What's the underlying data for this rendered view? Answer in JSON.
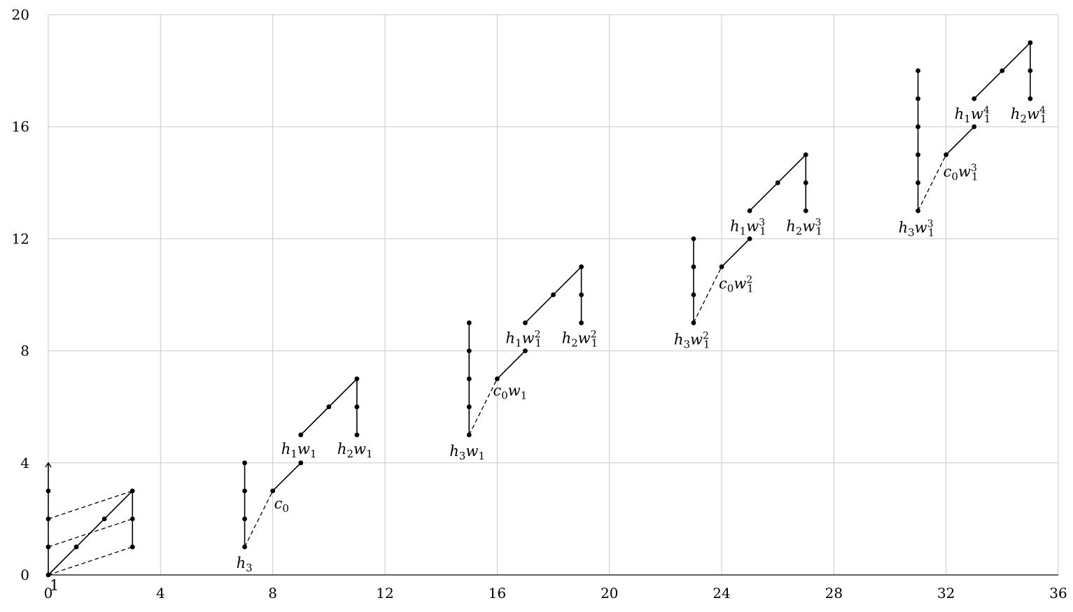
{
  "chart_data": {
    "type": "scatter",
    "title": "",
    "xlabel": "",
    "ylabel": "",
    "xlim": [
      0,
      36
    ],
    "ylim": [
      0,
      20
    ],
    "grid": true,
    "x_ticks": [
      0,
      4,
      8,
      12,
      16,
      20,
      24,
      28,
      32,
      36
    ],
    "y_ticks": [
      0,
      4,
      8,
      12,
      16,
      20
    ],
    "x_tick_labels": [
      "0",
      "4",
      "8",
      "12",
      "16",
      "20",
      "24",
      "28",
      "32",
      "36"
    ],
    "y_tick_labels": [
      "0",
      "4",
      "8",
      "12",
      "16",
      "20"
    ],
    "points": [
      [
        0,
        0
      ],
      [
        0,
        1
      ],
      [
        0,
        2
      ],
      [
        0,
        3
      ],
      [
        1,
        1
      ],
      [
        2,
        2
      ],
      [
        3,
        1
      ],
      [
        3,
        2
      ],
      [
        3,
        3
      ],
      [
        7,
        1
      ],
      [
        7,
        2
      ],
      [
        7,
        3
      ],
      [
        7,
        4
      ],
      [
        8,
        3
      ],
      [
        9,
        4
      ],
      [
        9,
        5
      ],
      [
        10,
        6
      ],
      [
        11,
        5
      ],
      [
        11,
        6
      ],
      [
        11,
        7
      ],
      [
        15,
        5
      ],
      [
        15,
        6
      ],
      [
        15,
        7
      ],
      [
        15,
        8
      ],
      [
        15,
        9
      ],
      [
        16,
        7
      ],
      [
        17,
        8
      ],
      [
        17,
        9
      ],
      [
        18,
        10
      ],
      [
        19,
        9
      ],
      [
        19,
        10
      ],
      [
        19,
        11
      ],
      [
        23,
        9
      ],
      [
        23,
        10
      ],
      [
        23,
        11
      ],
      [
        23,
        12
      ],
      [
        24,
        11
      ],
      [
        25,
        12
      ],
      [
        25,
        13
      ],
      [
        26,
        14
      ],
      [
        27,
        13
      ],
      [
        27,
        14
      ],
      [
        27,
        15
      ],
      [
        31,
        13
      ],
      [
        31,
        14
      ],
      [
        31,
        15
      ],
      [
        31,
        16
      ],
      [
        31,
        17
      ],
      [
        31,
        18
      ],
      [
        32,
        15
      ],
      [
        33,
        16
      ],
      [
        33,
        17
      ],
      [
        34,
        18
      ],
      [
        35,
        17
      ],
      [
        35,
        18
      ],
      [
        35,
        19
      ]
    ],
    "solid_lines": [
      [
        [
          0,
          0
        ],
        [
          0,
          4
        ]
      ],
      [
        [
          0,
          0
        ],
        [
          3,
          3
        ]
      ],
      [
        [
          3,
          1
        ],
        [
          3,
          3
        ]
      ],
      [
        [
          7,
          1
        ],
        [
          7,
          4
        ]
      ],
      [
        [
          8,
          3
        ],
        [
          9,
          4
        ]
      ],
      [
        [
          9,
          5
        ],
        [
          11,
          7
        ]
      ],
      [
        [
          11,
          5
        ],
        [
          11,
          7
        ]
      ],
      [
        [
          15,
          5
        ],
        [
          15,
          9
        ]
      ],
      [
        [
          16,
          7
        ],
        [
          17,
          8
        ]
      ],
      [
        [
          17,
          9
        ],
        [
          19,
          11
        ]
      ],
      [
        [
          19,
          9
        ],
        [
          19,
          11
        ]
      ],
      [
        [
          23,
          9
        ],
        [
          23,
          12
        ]
      ],
      [
        [
          24,
          11
        ],
        [
          25,
          12
        ]
      ],
      [
        [
          25,
          13
        ],
        [
          27,
          15
        ]
      ],
      [
        [
          27,
          13
        ],
        [
          27,
          15
        ]
      ],
      [
        [
          31,
          13
        ],
        [
          31,
          18
        ]
      ],
      [
        [
          32,
          15
        ],
        [
          33,
          16
        ]
      ],
      [
        [
          33,
          17
        ],
        [
          35,
          19
        ]
      ],
      [
        [
          35,
          17
        ],
        [
          35,
          19
        ]
      ]
    ],
    "dashed_lines": [
      [
        [
          0,
          0
        ],
        [
          3,
          1
        ]
      ],
      [
        [
          0,
          1
        ],
        [
          3,
          2
        ]
      ],
      [
        [
          0,
          2
        ],
        [
          3,
          3
        ]
      ],
      [
        [
          7,
          1
        ],
        [
          8,
          3
        ]
      ],
      [
        [
          15,
          5
        ],
        [
          16,
          7
        ]
      ],
      [
        [
          23,
          9
        ],
        [
          24,
          11
        ]
      ],
      [
        [
          31,
          13
        ],
        [
          32,
          15
        ]
      ]
    ],
    "arrows": [
      {
        "from": [
          0,
          3.6
        ],
        "to": [
          0,
          4
        ]
      }
    ],
    "annotations": [
      {
        "id": "one",
        "parts": [
          {
            "t": "1",
            "k": "plain"
          }
        ],
        "x": 0,
        "y": 0,
        "dx": 2,
        "dy": 22
      },
      {
        "id": "h3",
        "parts": [
          {
            "t": "h",
            "k": "i"
          },
          {
            "t": "3",
            "k": "sub"
          }
        ],
        "x": 7,
        "y": 1,
        "dx": -12,
        "dy": 30
      },
      {
        "id": "c0",
        "parts": [
          {
            "t": "c",
            "k": "i"
          },
          {
            "t": "0",
            "k": "sub"
          }
        ],
        "x": 8,
        "y": 3,
        "dx": 2,
        "dy": 25
      },
      {
        "id": "h1w1",
        "parts": [
          {
            "t": "h",
            "k": "i"
          },
          {
            "t": "1",
            "k": "sub"
          },
          {
            "t": "w",
            "k": "i"
          },
          {
            "t": "1",
            "k": "sub"
          }
        ],
        "x": 9,
        "y": 5,
        "dx": -28,
        "dy": 27
      },
      {
        "id": "h2w1",
        "parts": [
          {
            "t": "h",
            "k": "i"
          },
          {
            "t": "2",
            "k": "sub"
          },
          {
            "t": "w",
            "k": "i"
          },
          {
            "t": "1",
            "k": "sub"
          }
        ],
        "x": 11,
        "y": 5,
        "dx": -28,
        "dy": 27
      },
      {
        "id": "h3w1",
        "parts": [
          {
            "t": "h",
            "k": "i"
          },
          {
            "t": "3",
            "k": "sub"
          },
          {
            "t": "w",
            "k": "i"
          },
          {
            "t": "1",
            "k": "sub"
          }
        ],
        "x": 15,
        "y": 5,
        "dx": -28,
        "dy": 30
      },
      {
        "id": "c0w1",
        "parts": [
          {
            "t": "c",
            "k": "i"
          },
          {
            "t": "0",
            "k": "sub"
          },
          {
            "t": "w",
            "k": "i"
          },
          {
            "t": "1",
            "k": "sub"
          }
        ],
        "x": 16,
        "y": 7,
        "dx": -6,
        "dy": 24
      },
      {
        "id": "h1w1sq",
        "parts": [
          {
            "t": "h",
            "k": "i"
          },
          {
            "t": "1",
            "k": "sub"
          },
          {
            "t": "w",
            "k": "i"
          },
          {
            "t": "2",
            "k": "sup"
          },
          {
            "t": "1",
            "k": "sub"
          }
        ],
        "x": 17,
        "y": 9,
        "dx": -28,
        "dy": 29
      },
      {
        "id": "h2w1sq",
        "parts": [
          {
            "t": "h",
            "k": "i"
          },
          {
            "t": "2",
            "k": "sub"
          },
          {
            "t": "w",
            "k": "i"
          },
          {
            "t": "2",
            "k": "sup"
          },
          {
            "t": "1",
            "k": "sub"
          }
        ],
        "x": 19,
        "y": 9,
        "dx": -28,
        "dy": 29
      },
      {
        "id": "h3w1sq",
        "parts": [
          {
            "t": "h",
            "k": "i"
          },
          {
            "t": "3",
            "k": "sub"
          },
          {
            "t": "w",
            "k": "i"
          },
          {
            "t": "2",
            "k": "sup"
          },
          {
            "t": "1",
            "k": "sub"
          }
        ],
        "x": 23,
        "y": 9,
        "dx": -28,
        "dy": 31
      },
      {
        "id": "c0w1sq",
        "parts": [
          {
            "t": "c",
            "k": "i"
          },
          {
            "t": "0",
            "k": "sub"
          },
          {
            "t": "w",
            "k": "i"
          },
          {
            "t": "2",
            "k": "sup"
          },
          {
            "t": "1",
            "k": "sub"
          }
        ],
        "x": 24,
        "y": 11,
        "dx": -4,
        "dy": 31
      },
      {
        "id": "h1w1cu",
        "parts": [
          {
            "t": "h",
            "k": "i"
          },
          {
            "t": "1",
            "k": "sub"
          },
          {
            "t": "w",
            "k": "i"
          },
          {
            "t": "3",
            "k": "sup"
          },
          {
            "t": "1",
            "k": "sub"
          }
        ],
        "x": 25,
        "y": 13,
        "dx": -28,
        "dy": 29
      },
      {
        "id": "h2w1cu",
        "parts": [
          {
            "t": "h",
            "k": "i"
          },
          {
            "t": "2",
            "k": "sub"
          },
          {
            "t": "w",
            "k": "i"
          },
          {
            "t": "3",
            "k": "sup"
          },
          {
            "t": "1",
            "k": "sub"
          }
        ],
        "x": 27,
        "y": 13,
        "dx": -28,
        "dy": 29
      },
      {
        "id": "h3w1cu",
        "parts": [
          {
            "t": "h",
            "k": "i"
          },
          {
            "t": "3",
            "k": "sub"
          },
          {
            "t": "w",
            "k": "i"
          },
          {
            "t": "3",
            "k": "sup"
          },
          {
            "t": "1",
            "k": "sub"
          }
        ],
        "x": 31,
        "y": 13,
        "dx": -28,
        "dy": 31
      },
      {
        "id": "c0w1cu",
        "parts": [
          {
            "t": "c",
            "k": "i"
          },
          {
            "t": "0",
            "k": "sub"
          },
          {
            "t": "w",
            "k": "i"
          },
          {
            "t": "3",
            "k": "sup"
          },
          {
            "t": "1",
            "k": "sub"
          }
        ],
        "x": 32,
        "y": 15,
        "dx": -4,
        "dy": 31
      },
      {
        "id": "h1w1q",
        "parts": [
          {
            "t": "h",
            "k": "i"
          },
          {
            "t": "1",
            "k": "sub"
          },
          {
            "t": "w",
            "k": "i"
          },
          {
            "t": "4",
            "k": "sup"
          },
          {
            "t": "1",
            "k": "sub"
          }
        ],
        "x": 33,
        "y": 17,
        "dx": -28,
        "dy": 29
      },
      {
        "id": "h2w1q",
        "parts": [
          {
            "t": "h",
            "k": "i"
          },
          {
            "t": "2",
            "k": "sub"
          },
          {
            "t": "w",
            "k": "i"
          },
          {
            "t": "4",
            "k": "sup"
          },
          {
            "t": "1",
            "k": "sub"
          }
        ],
        "x": 35,
        "y": 17,
        "dx": -28,
        "dy": 29
      }
    ]
  }
}
